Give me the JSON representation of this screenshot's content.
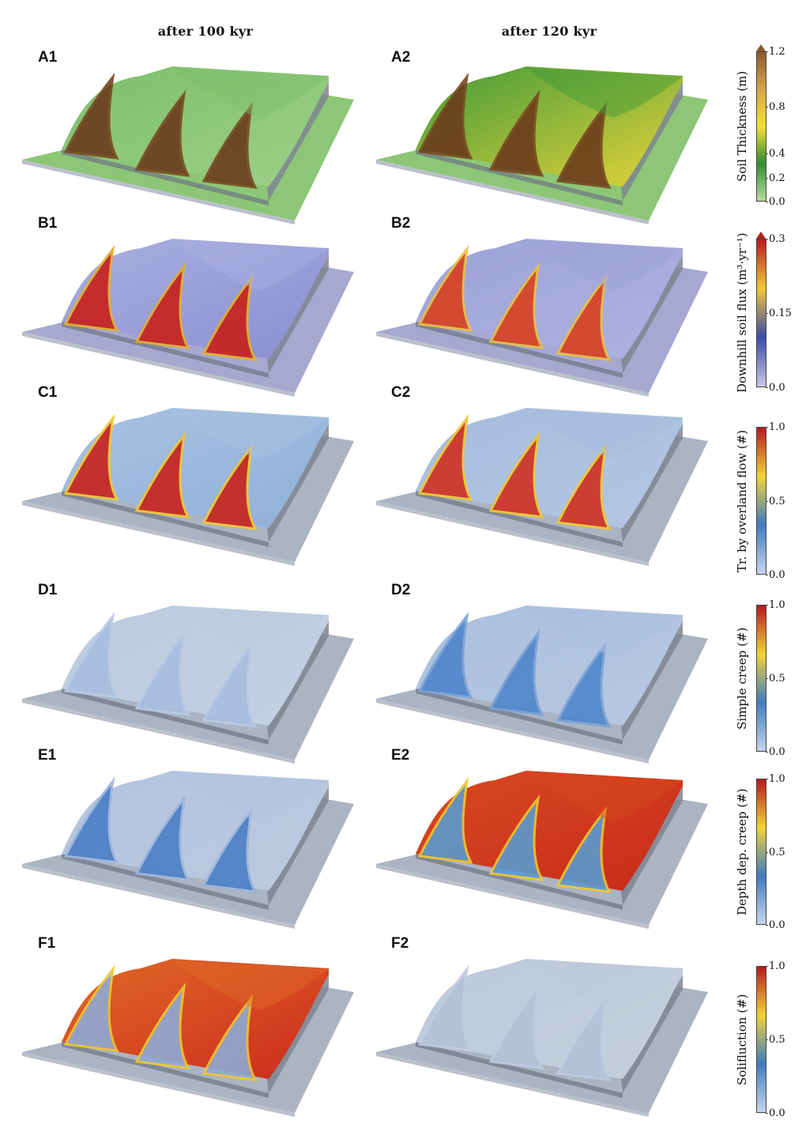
{
  "columns": [
    "after 100 kyr",
    "after 120 kyr"
  ],
  "rows": [
    {
      "left_label": "A1",
      "right_label": "A2",
      "cbar_title": "Soil Thickness (m)",
      "ticks": [
        "1.2",
        "0.8",
        "0.4",
        "0.2",
        "0.0"
      ],
      "colors": [
        "#8c5a2e",
        "#d7a34a",
        "#f3df3a",
        "#2f8c2f",
        "#b7dba0"
      ],
      "left": {
        "base": "#9fd08a",
        "ridge": "#7cbf6a",
        "gully": "#6b3b1c",
        "edge": "#7a4a22"
      },
      "right": {
        "base": "#e8d43a",
        "ridge": "#3f9a3a",
        "gully": "#6b3b1c",
        "edge": "#7a4a22"
      }
    },
    {
      "left_label": "B1",
      "right_label": "B2",
      "cbar_title": "Downhill soil flux (m³·yr⁻¹)",
      "ticks": [
        "0.3",
        "0.15",
        "0.0"
      ],
      "colors": [
        "#b31b1b",
        "#f2c63a",
        "#3a4aa8",
        "#c8c8e6"
      ],
      "left": {
        "base": "#8a8ed2",
        "ridge": "#aab0e0",
        "gully": "#c8201a",
        "edge": "#e0b030"
      },
      "right": {
        "base": "#aeb2e0",
        "ridge": "#9da2d8",
        "gully": "#d8401e",
        "edge": "#e8c040"
      }
    },
    {
      "left_label": "C1",
      "right_label": "C2",
      "cbar_title": "Tr. by overland flow (#)",
      "ticks": [
        "1.0",
        "0.5",
        "0.0"
      ],
      "colors": [
        "#b31b1b",
        "#f2d23a",
        "#3e7cc0",
        "#c6d4ec"
      ],
      "left": {
        "base": "#8fb0d8",
        "ridge": "#a9c2e2",
        "gully": "#c8221c",
        "edge": "#f0c830"
      },
      "right": {
        "base": "#b4c8e4",
        "ridge": "#a6bcde",
        "gully": "#d03020",
        "edge": "#f0c830"
      }
    },
    {
      "left_label": "D1",
      "right_label": "D2",
      "cbar_title": "Simple creep (#)",
      "ticks": [
        "1.0",
        "0.5",
        "0.0"
      ],
      "colors": [
        "#b31b1b",
        "#f2d23a",
        "#3e7cc0",
        "#c6d4ec"
      ],
      "left": {
        "base": "#c4d0e2",
        "ridge": "#bccbe0",
        "gully": "#a8bee0",
        "edge": "#b9cae4"
      },
      "right": {
        "base": "#b8c8e0",
        "ridge": "#aabfe0",
        "gully": "#4f86cc",
        "edge": "#7aa2d6"
      }
    },
    {
      "left_label": "E1",
      "right_label": "E2",
      "cbar_title": "Depth dep. creep (#)",
      "ticks": [
        "1.0",
        "0.5",
        "0.0"
      ],
      "colors": [
        "#b31b1b",
        "#f2d23a",
        "#3e7cc0",
        "#c6d4ec"
      ],
      "left": {
        "base": "#bccadf",
        "ridge": "#b2c4e0",
        "gully": "#4a7fc6",
        "edge": "#9fb6dc"
      },
      "right": {
        "base": "#c82a1a",
        "ridge": "#d84a20",
        "gully": "#5a9ad0",
        "edge": "#f0c830"
      }
    },
    {
      "left_label": "F1",
      "right_label": "F2",
      "cbar_title": "Solifluction (#)",
      "ticks": [
        "1.0",
        "0.5",
        "0.0"
      ],
      "colors": [
        "#b31b1b",
        "#f2d23a",
        "#3e7cc0",
        "#c6d4ec"
      ],
      "left": {
        "base": "#cc2a1c",
        "ridge": "#e06a28",
        "gully": "#8eaad6",
        "edge": "#f0c830"
      },
      "right": {
        "base": "#c6d0de",
        "ridge": "#bcc8da",
        "gully": "#b4c2d8",
        "edge": "#c0cbe0"
      }
    }
  ]
}
